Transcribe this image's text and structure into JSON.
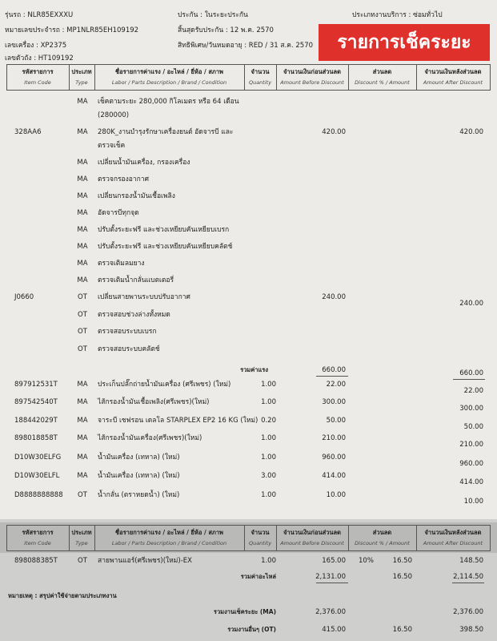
{
  "header": {
    "lines": [
      [
        "รุ่นรถ : NLR85EXXXU",
        "ประกัน : ในระยะประกัน",
        "ประเภทงานบริการ : ซ่อมทั่วไป"
      ],
      [
        "หมายเลขประจำรถ : MP1NLR85EH109192",
        "สิ้นสุดรับประกัน : 12 พ.ค. 2570"
      ],
      [
        "เลขเครื่อง : XP2375",
        "สิทธิพิเศษ/วันหมดอายุ : RED / 31 ส.ค. 2570"
      ],
      [
        "เลขตัวถัง : HT109192"
      ]
    ],
    "badge": "รายการเช็คระยะ"
  },
  "table": {
    "columns": [
      {
        "th": "รหัสรายการ",
        "en": "Item Code"
      },
      {
        "th": "ประเภท",
        "en": "Type"
      },
      {
        "th": "ชื่อรายการค่าแรง / อะไหล่ / ยี่ห้อ / สภาพ",
        "en": "Labor / Parts Description / Brand / Condition"
      },
      {
        "th": "จำนวน",
        "en": "Quantity"
      },
      {
        "th": "จำนวนเงินก่อนส่วนลด",
        "en": "Amount Before Discount"
      },
      {
        "th": "ส่วนลด",
        "en": "Discount % / Amount"
      },
      {
        "th": "จำนวนเงินหลังส่วนลด",
        "en": "Amount After Discount"
      }
    ],
    "rows": [
      {
        "type": "MA",
        "description": [
          "เช็คตามระยะ 280,000 กิโลเมตร หรือ 64 เดือน",
          "(280000)"
        ]
      },
      {
        "code": "328AA6",
        "type": "MA",
        "description": [
          "280K_งานบำรุงรักษาเครื่องยนต์ อัดจารบี และ",
          "ตรวจเช็ค"
        ],
        "before": "420.00",
        "after": "420.00"
      },
      {
        "type": "MA",
        "description": [
          "เปลี่ยนน้ำมันเครื่อง, กรองเครื่อง"
        ]
      },
      {
        "type": "MA",
        "description": [
          "ตรวจกรองอากาศ"
        ]
      },
      {
        "type": "MA",
        "description": [
          "เปลี่ยนกรองน้ำมันเชื้อเพลิง"
        ]
      },
      {
        "type": "MA",
        "description": [
          "อัดจารบีทุกจุด"
        ]
      },
      {
        "type": "MA",
        "description": [
          "ปรับตั้งระยะฟรี และช่วงเหยียบคันเหยียบเบรก"
        ]
      },
      {
        "type": "MA",
        "description": [
          "ปรับตั้งระยะฟรี และช่วงเหยียบคันเหยียบคลัตช์"
        ]
      },
      {
        "type": "MA",
        "description": [
          "ตรวจเติมลมยาง"
        ]
      },
      {
        "type": "MA",
        "description": [
          "ตรวจเติมน้ำกลั่นแบตเตอรี่"
        ]
      },
      {
        "code": "J0660",
        "type": "OT",
        "description": [
          "เปลี่ยนสายพานระบบปรับอากาศ"
        ],
        "before": "240.00",
        "after": "240.00"
      },
      {
        "type": "OT",
        "description": [
          "ตรวจสอบช่วงล่างทั้งหมด"
        ]
      },
      {
        "type": "OT",
        "description": [
          "ตรวจสอบระบบเบรก"
        ]
      },
      {
        "type": "OT",
        "description": [
          "ตรวจสอบระบบคลัตช์"
        ]
      }
    ],
    "labor_total": {
      "label": "รวมค่าแรง",
      "before": "660.00",
      "after": "660.00"
    },
    "parts": [
      {
        "code": "897912531T",
        "type": "MA",
        "description": [
          "ประเก็นปลั๊กถ่ายน้ำมันเครื่อง (ศรีเพชร) (ใหม่)"
        ],
        "quantity": "1.00",
        "before": "22.00",
        "after": "22.00"
      },
      {
        "code": "897542540T",
        "type": "MA",
        "description": [
          "ไส้กรองน้ำมันเชื้อเพลิง(ศรีเพชร)(ใหม่)"
        ],
        "quantity": "1.00",
        "before": "300.00",
        "after": "300.00"
      },
      {
        "code": "188442029T",
        "type": "MA",
        "description": [
          "จาระบี เชฟรอน เดลโล STARPLEX EP2 16 KG (ใหม่)"
        ],
        "quantity": "0.20",
        "before": "50.00",
        "after": "50.00"
      },
      {
        "code": "898018858T",
        "type": "MA",
        "description": [
          "ไส้กรองน้ำมันเครื่อง(ศรีเพชร)(ใหม่)"
        ],
        "quantity": "1.00",
        "before": "210.00",
        "after": "210.00"
      },
      {
        "code": "D10W30ELFG",
        "type": "MA",
        "description": [
          "น้ำมันเครื่อง (เทหาล) (ใหม่)"
        ],
        "quantity": "1.00",
        "before": "960.00",
        "after": "960.00"
      },
      {
        "code": "D10W30ELFL",
        "type": "MA",
        "description": [
          "น้ำมันเครื่อง (เทหาล) (ใหม่)"
        ],
        "quantity": "3.00",
        "before": "414.00",
        "after": "414.00"
      },
      {
        "code": "D8888888888",
        "type": "OT",
        "description": [
          "น้ำกลั่น (ตราหยดน้ำ) (ใหม่)"
        ],
        "quantity": "1.00",
        "before": "10.00",
        "after": "10.00"
      }
    ]
  },
  "page2": {
    "rows": [
      {
        "code": "898088385T",
        "type": "OT",
        "description": [
          "สายพานแอร์(ศรีเพชร)(ใหม่)-EX"
        ],
        "quantity": "1.00",
        "before": "165.00",
        "discount_pct": "10%",
        "discount": "16.50",
        "after": "148.50"
      }
    ],
    "parts_total": {
      "label": "รวมค่าอะไหล่",
      "before": "2,131.00",
      "discount": "16.50",
      "after": "2,114.50"
    },
    "remark": "หมายเหตุ : สรุปค่าใช้จ่ายตามประเภทงาน",
    "summary": [
      {
        "label": "รวมงานเช็คระยะ (MA)",
        "before": "2,376.00",
        "after": "2,376.00"
      },
      {
        "label": "รวมงานอื่นๆ (OT)",
        "before": "415.00",
        "discount": "16.50",
        "after": "398.50"
      }
    ]
  }
}
